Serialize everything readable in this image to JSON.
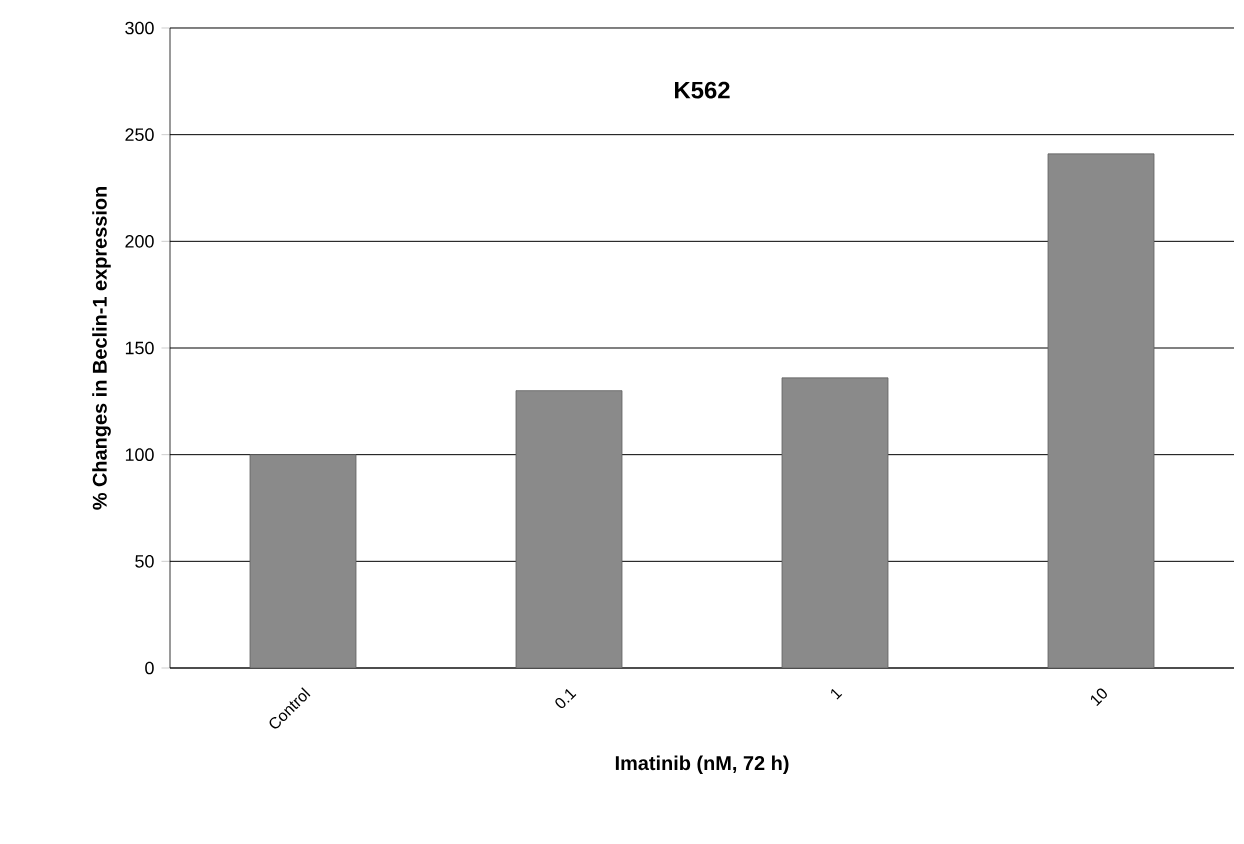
{
  "chart_data": {
    "type": "bar",
    "title": "K562",
    "xlabel": "Imatinib (nM, 72 h)",
    "ylabel": "% Changes in Beclin-1 expression",
    "categories": [
      "Control",
      "0.1",
      "1",
      "10"
    ],
    "values": [
      100,
      130,
      136,
      241
    ],
    "color": "#8a8a8a",
    "ylim": [
      0,
      300
    ],
    "yticks": [
      0,
      50,
      100,
      150,
      200,
      250,
      300
    ],
    "grid": "y"
  }
}
